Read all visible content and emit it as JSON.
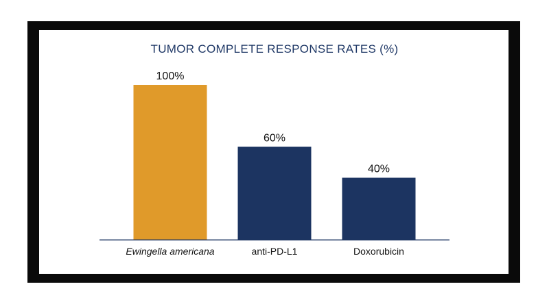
{
  "chart_data": {
    "type": "bar",
    "title": "TUMOR COMPLETE RESPONSE RATES (%)",
    "categories": [
      "Ewingella americana",
      "anti-PD-L1",
      "Doxorubicin"
    ],
    "values": [
      100,
      60,
      40
    ],
    "value_labels": [
      "100%",
      "60%",
      "40%"
    ],
    "italic_categories": [
      "Ewingella americana"
    ],
    "ylim": [
      0,
      100
    ],
    "grid": false,
    "legend": "none",
    "colors": [
      "#e09a2a",
      "#1c3461",
      "#1c3461"
    ],
    "axis_color": "#1c3461"
  }
}
